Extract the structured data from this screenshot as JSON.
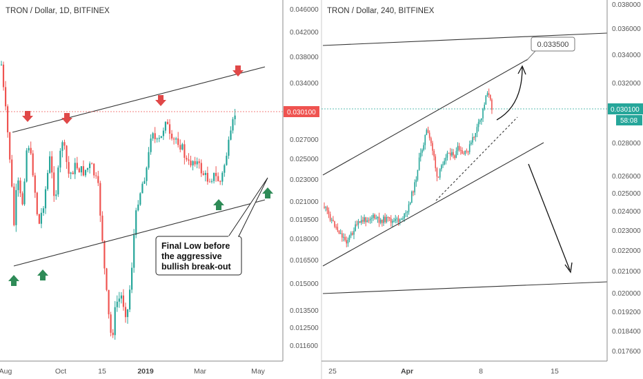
{
  "colors": {
    "up": "#26a69a",
    "down": "#ef5350",
    "trend": "#333333",
    "arrow_up": "#2e8b57",
    "arrow_down": "#e04848",
    "axis_text": "#555555",
    "price_tag_left": "#ef5350",
    "price_tag_right": "#26a69a"
  },
  "chart_data": [
    {
      "type": "candlestick",
      "title": "TRON / Dollar, 1D, BITFINEX",
      "y_axis_ticks": [
        "0.046000",
        "0.042000",
        "0.038000",
        "0.034000",
        "0.030100",
        "0.027000",
        "0.025000",
        "0.023000",
        "0.021000",
        "0.019500",
        "0.018000",
        "0.016500",
        "0.015000",
        "0.013500",
        "0.012500",
        "0.011600"
      ],
      "x_axis_ticks": [
        "Aug",
        "Oct",
        "15",
        "2019",
        "Mar",
        "May"
      ],
      "last_price": "0.030100",
      "scale": "log",
      "annotation": {
        "lines": [
          "Final Low before",
          "the aggressive",
          "bullish break-out"
        ]
      }
    },
    {
      "type": "candlestick",
      "title": "TRON / Dollar, 240, BITFINEX",
      "y_axis_ticks": [
        "0.038000",
        "0.036000",
        "0.034000",
        "0.032000",
        "0.030100",
        "0.028000",
        "0.026000",
        "0.025000",
        "0.024000",
        "0.023000",
        "0.022000",
        "0.021000",
        "0.020000",
        "0.019200",
        "0.018400",
        "0.017600"
      ],
      "x_axis_ticks": [
        "25",
        "Apr",
        "8",
        "15"
      ],
      "last_price": "0.030100",
      "countdown": "58:08",
      "target_label": "0.033500",
      "scale": "log"
    }
  ]
}
